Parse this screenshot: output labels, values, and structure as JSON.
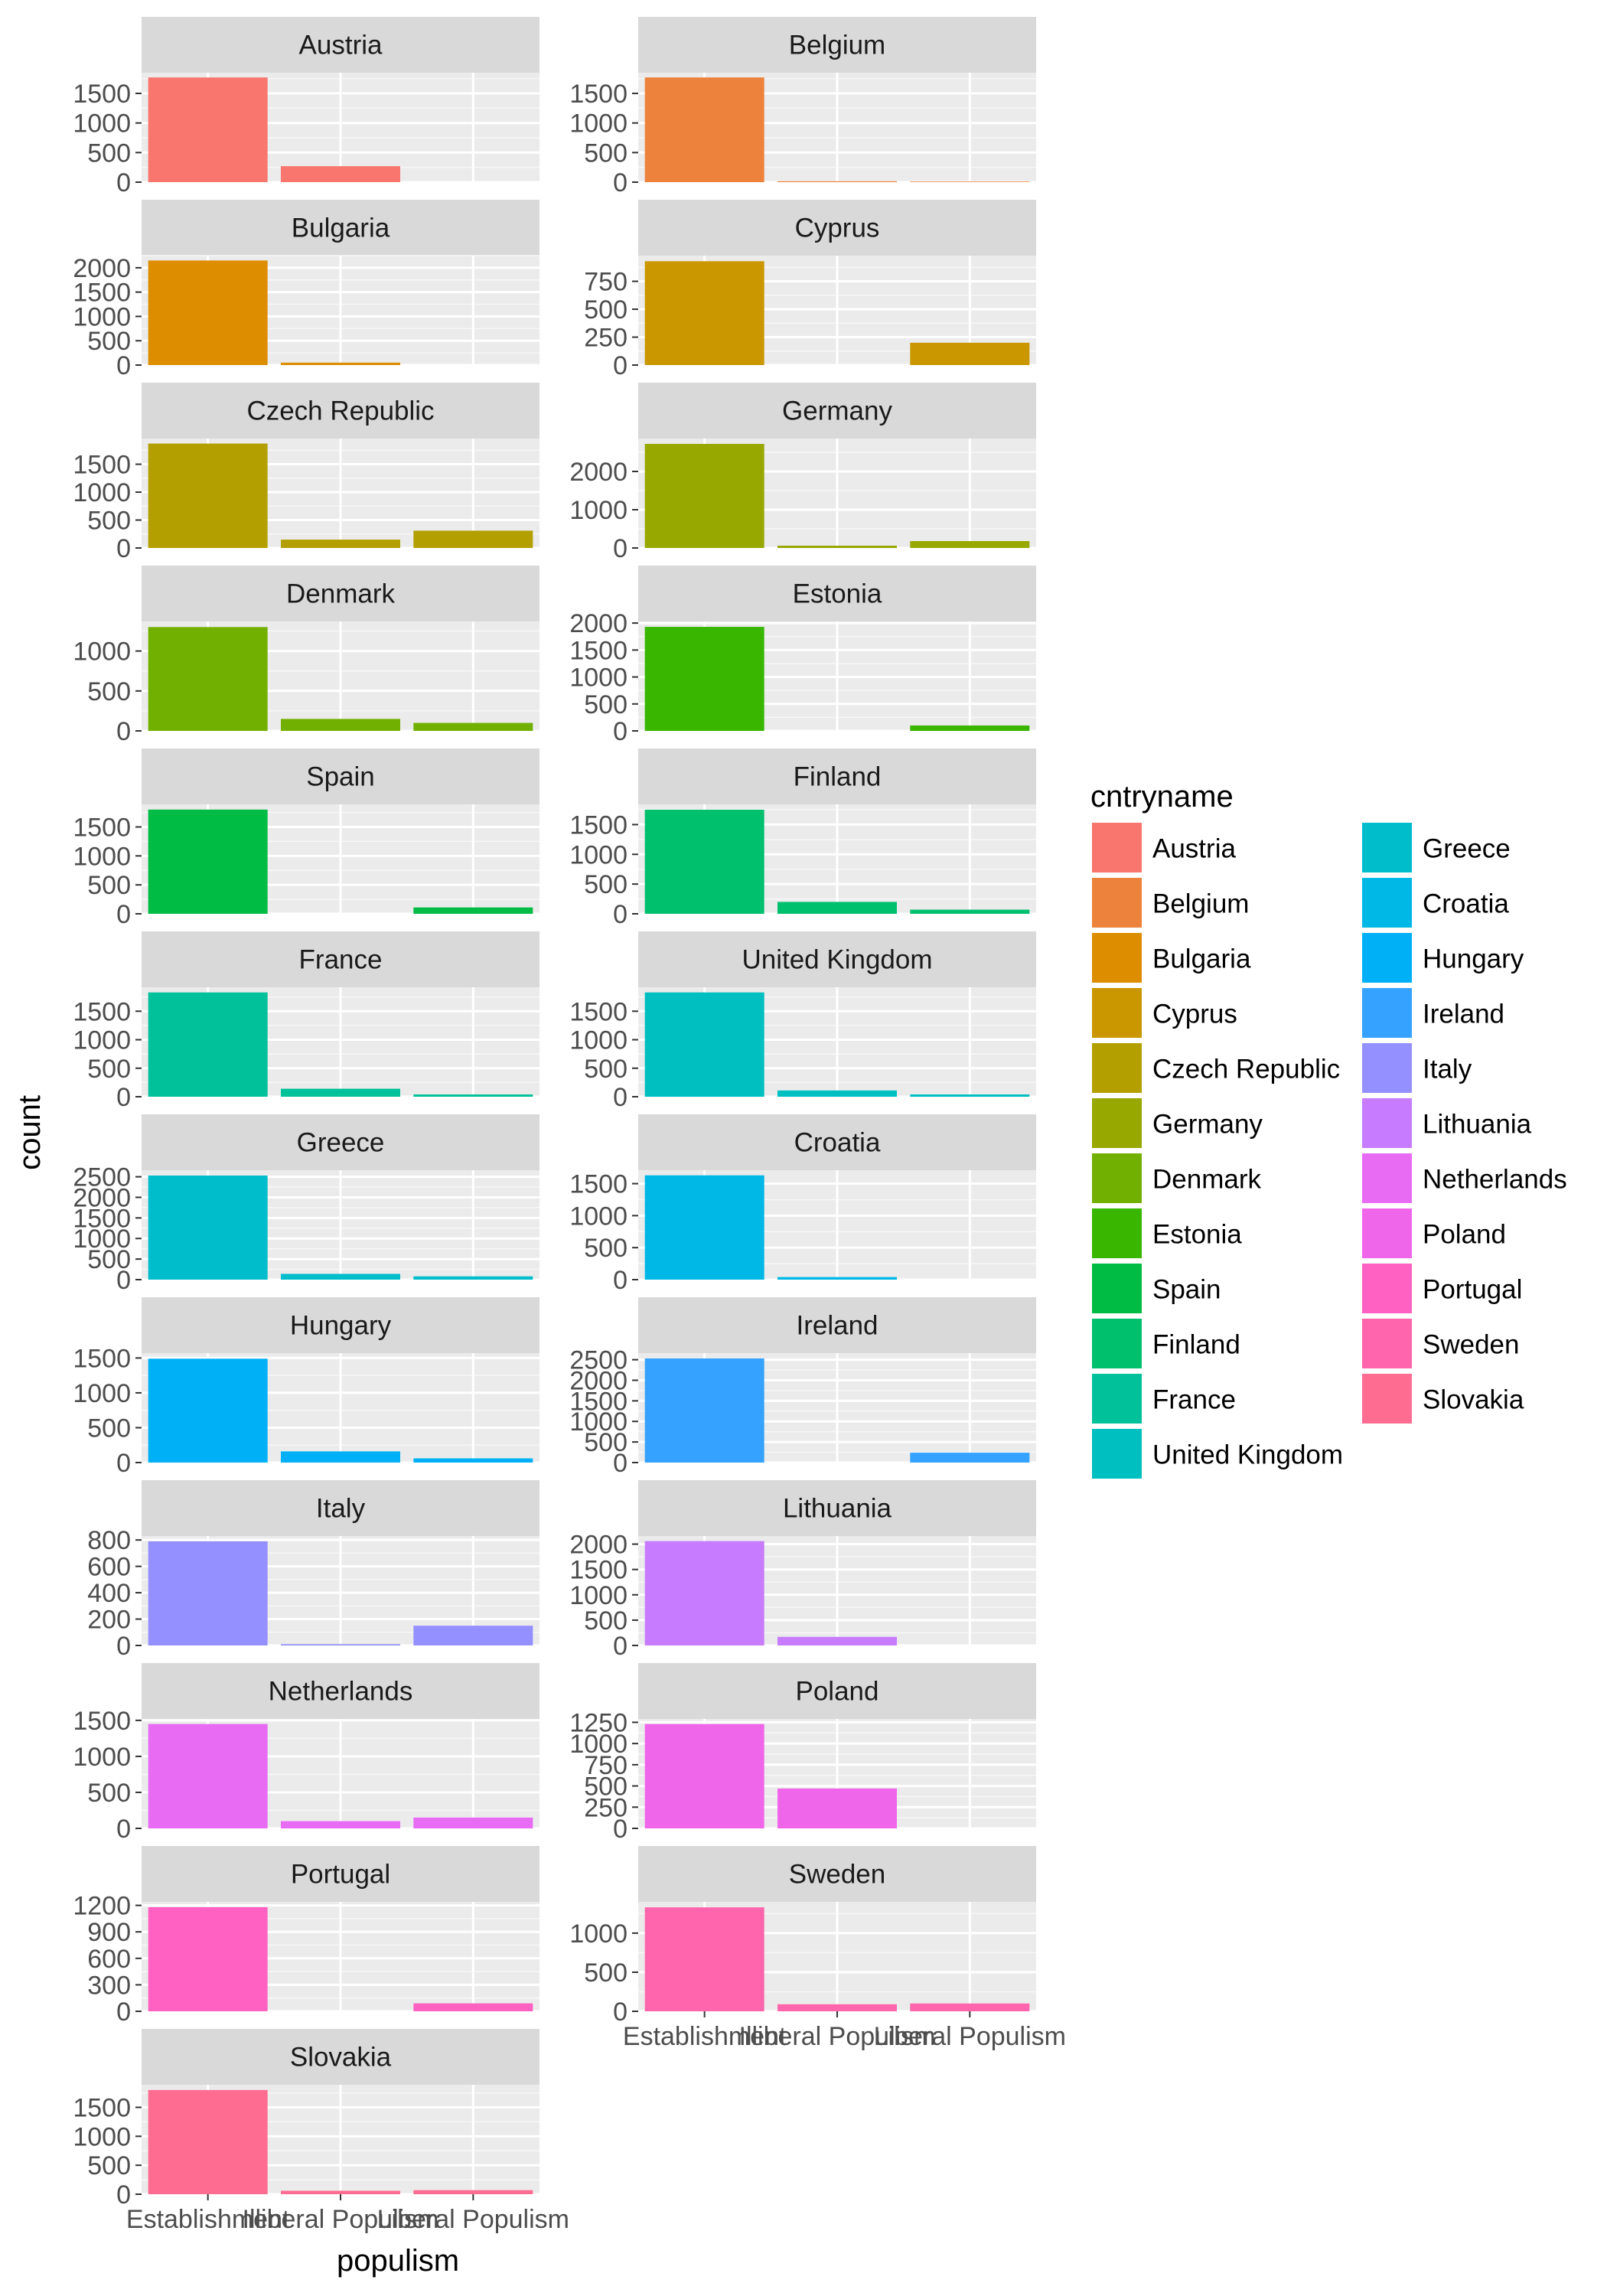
{
  "chart_data": {
    "type": "bar",
    "facet_layout": "wrap, 2 columns, 13 rows",
    "grid": true,
    "legend_placement": "right",
    "xlabel": "populism",
    "ylabel": "count",
    "categories": [
      "Establishment",
      "Illiberal Populism",
      "Liberal Populism"
    ],
    "legend": {
      "title": "cntryname",
      "columns": 2,
      "items": [
        {
          "name": "Austria",
          "color": "#F8766D"
        },
        {
          "name": "Belgium",
          "color": "#EC823C"
        },
        {
          "name": "Bulgaria",
          "color": "#DD8D00"
        },
        {
          "name": "Cyprus",
          "color": "#CA9700"
        },
        {
          "name": "Czech Republic",
          "color": "#B3A000"
        },
        {
          "name": "Germany",
          "color": "#97A800"
        },
        {
          "name": "Denmark",
          "color": "#72B000"
        },
        {
          "name": "Estonia",
          "color": "#39B600"
        },
        {
          "name": "Spain",
          "color": "#00BC45"
        },
        {
          "name": "Finland",
          "color": "#00C06E"
        },
        {
          "name": "France",
          "color": "#00C19A"
        },
        {
          "name": "United Kingdom",
          "color": "#00BFC0"
        },
        {
          "name": "Greece",
          "color": "#00BDCC"
        },
        {
          "name": "Croatia",
          "color": "#00B8E5"
        },
        {
          "name": "Hungary",
          "color": "#00B0F6"
        },
        {
          "name": "Ireland",
          "color": "#35A2FF"
        },
        {
          "name": "Italy",
          "color": "#9590FF"
        },
        {
          "name": "Lithuania",
          "color": "#C77CFF"
        },
        {
          "name": "Netherlands",
          "color": "#E76BF3"
        },
        {
          "name": "Poland",
          "color": "#F066EA"
        },
        {
          "name": "Portugal",
          "color": "#FF61C3"
        },
        {
          "name": "Sweden",
          "color": "#FF65AC"
        },
        {
          "name": "Slovakia",
          "color": "#FF6C91"
        }
      ]
    },
    "facets": [
      {
        "name": "Austria",
        "color": "#F8766D",
        "values": [
          1770,
          270,
          0
        ],
        "ylim": [
          0,
          1850
        ],
        "ticks": [
          0,
          500,
          1000,
          1500
        ]
      },
      {
        "name": "Belgium",
        "color": "#EC823C",
        "values": [
          1770,
          15,
          10
        ],
        "ylim": [
          0,
          1850
        ],
        "ticks": [
          0,
          500,
          1000,
          1500
        ]
      },
      {
        "name": "Bulgaria",
        "color": "#DD8D00",
        "values": [
          2150,
          50,
          0
        ],
        "ylim": [
          0,
          2250
        ],
        "ticks": [
          0,
          500,
          1000,
          1500,
          2000
        ]
      },
      {
        "name": "Cyprus",
        "color": "#CA9700",
        "values": [
          930,
          0,
          200
        ],
        "ylim": [
          0,
          980
        ],
        "ticks": [
          0,
          250,
          500,
          750
        ]
      },
      {
        "name": "Czech Republic",
        "color": "#B3A000",
        "values": [
          1870,
          150,
          310
        ],
        "ylim": [
          0,
          1960
        ],
        "ticks": [
          0,
          500,
          1000,
          1500
        ]
      },
      {
        "name": "Germany",
        "color": "#97A800",
        "values": [
          2720,
          60,
          180
        ],
        "ylim": [
          0,
          2860
        ],
        "ticks": [
          0,
          1000,
          2000
        ]
      },
      {
        "name": "Denmark",
        "color": "#72B000",
        "values": [
          1300,
          150,
          100
        ],
        "ylim": [
          0,
          1370
        ],
        "ticks": [
          0,
          500,
          1000
        ]
      },
      {
        "name": "Estonia",
        "color": "#39B600",
        "values": [
          1930,
          0,
          100
        ],
        "ylim": [
          0,
          2030
        ],
        "ticks": [
          0,
          500,
          1000,
          1500,
          2000
        ]
      },
      {
        "name": "Spain",
        "color": "#00BC45",
        "values": [
          1800,
          0,
          110
        ],
        "ylim": [
          0,
          1890
        ],
        "ticks": [
          0,
          500,
          1000,
          1500
        ]
      },
      {
        "name": "Finland",
        "color": "#00C06E",
        "values": [
          1750,
          200,
          70
        ],
        "ylim": [
          0,
          1840
        ],
        "ticks": [
          0,
          500,
          1000,
          1500
        ]
      },
      {
        "name": "France",
        "color": "#00C19A",
        "values": [
          1830,
          140,
          40
        ],
        "ylim": [
          0,
          1920
        ],
        "ticks": [
          0,
          500,
          1000,
          1500
        ]
      },
      {
        "name": "United Kingdom",
        "color": "#00BFC0",
        "values": [
          1830,
          110,
          40
        ],
        "ylim": [
          0,
          1920
        ],
        "ticks": [
          0,
          500,
          1000,
          1500
        ]
      },
      {
        "name": "Greece",
        "color": "#00BDCC",
        "values": [
          2530,
          140,
          80
        ],
        "ylim": [
          0,
          2660
        ],
        "ticks": [
          0,
          500,
          1000,
          1500,
          2000,
          2500
        ]
      },
      {
        "name": "Croatia",
        "color": "#00B8E5",
        "values": [
          1630,
          40,
          0
        ],
        "ylim": [
          0,
          1710
        ],
        "ticks": [
          0,
          500,
          1000,
          1500
        ]
      },
      {
        "name": "Hungary",
        "color": "#00B0F6",
        "values": [
          1490,
          160,
          60
        ],
        "ylim": [
          0,
          1570
        ],
        "ticks": [
          0,
          500,
          1000,
          1500
        ]
      },
      {
        "name": "Ireland",
        "color": "#35A2FF",
        "values": [
          2530,
          0,
          240
        ],
        "ylim": [
          0,
          2660
        ],
        "ticks": [
          0,
          500,
          1000,
          1500,
          2000,
          2500
        ]
      },
      {
        "name": "Italy",
        "color": "#9590FF",
        "values": [
          790,
          10,
          150
        ],
        "ylim": [
          0,
          830
        ],
        "ticks": [
          0,
          200,
          400,
          600,
          800
        ]
      },
      {
        "name": "Lithuania",
        "color": "#C77CFF",
        "values": [
          2060,
          170,
          0
        ],
        "ylim": [
          0,
          2160
        ],
        "ticks": [
          0,
          500,
          1000,
          1500,
          2000
        ]
      },
      {
        "name": "Netherlands",
        "color": "#E76BF3",
        "values": [
          1450,
          100,
          150
        ],
        "ylim": [
          0,
          1520
        ],
        "ticks": [
          0,
          500,
          1000,
          1500
        ]
      },
      {
        "name": "Poland",
        "color": "#F066EA",
        "values": [
          1230,
          470,
          0
        ],
        "ylim": [
          0,
          1290
        ],
        "ticks": [
          0,
          250,
          500,
          750,
          1000,
          1250
        ]
      },
      {
        "name": "Portugal",
        "color": "#FF61C3",
        "values": [
          1180,
          0,
          90
        ],
        "ylim": [
          0,
          1240
        ],
        "ticks": [
          0,
          300,
          600,
          900,
          1200
        ]
      },
      {
        "name": "Sweden",
        "color": "#FF65AC",
        "values": [
          1330,
          90,
          100
        ],
        "ylim": [
          0,
          1400
        ],
        "ticks": [
          0,
          500,
          1000
        ]
      },
      {
        "name": "Slovakia",
        "color": "#FF6C91",
        "values": [
          1800,
          60,
          70
        ],
        "ylim": [
          0,
          1890
        ],
        "ticks": [
          0,
          500,
          1000,
          1500
        ]
      }
    ]
  }
}
